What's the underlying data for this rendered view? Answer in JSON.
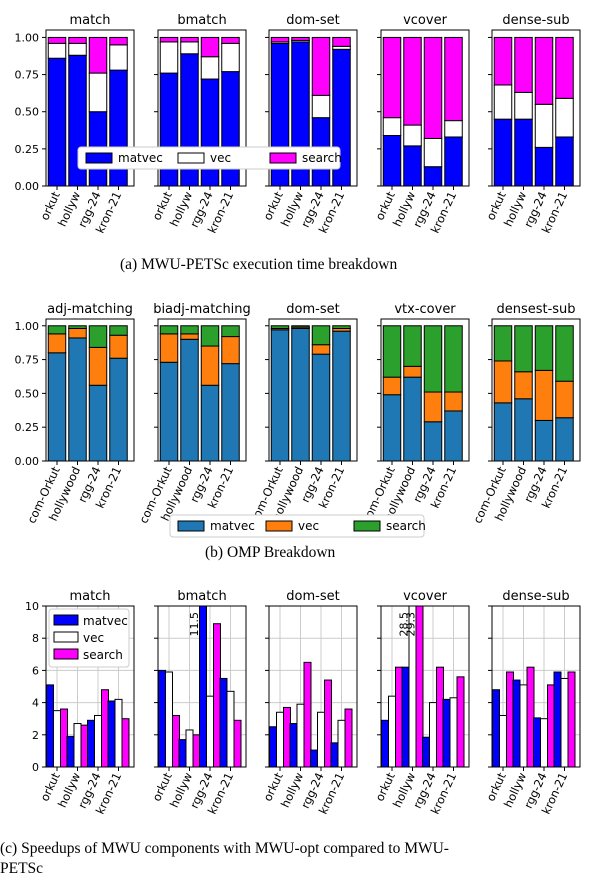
{
  "captions": {
    "a": "(a) MWU-PETSc execution time breakdown",
    "b": "(b) OMP Breakdown",
    "c_line1": "(c) Speedups of MWU components with MWU-opt compared to MWU-",
    "c_line2": "PETSc"
  },
  "chart_data": [
    {
      "type": "bar",
      "stacked": true,
      "normalized": true,
      "subplots": [
        "match",
        "bmatch",
        "dom-set",
        "vcover",
        "dense-sub"
      ],
      "categories": [
        "orkut",
        "hollyw",
        "rgg-24",
        "kron-21"
      ],
      "yticks": [
        "0.00",
        "0.25",
        "0.50",
        "0.75",
        "1.00"
      ],
      "ylim": [
        0,
        1.05
      ],
      "legend": "inside first panel, lower-right",
      "series": [
        {
          "name": "matvec",
          "color": "#0000ff",
          "values": [
            [
              0.86,
              0.88,
              0.5,
              0.78
            ],
            [
              0.76,
              0.89,
              0.72,
              0.77
            ],
            [
              0.96,
              0.97,
              0.46,
              0.92
            ],
            [
              0.34,
              0.27,
              0.13,
              0.33
            ],
            [
              0.45,
              0.45,
              0.26,
              0.33
            ]
          ]
        },
        {
          "name": "vec",
          "color": "#ffffff",
          "values": [
            [
              0.1,
              0.08,
              0.26,
              0.17
            ],
            [
              0.21,
              0.08,
              0.15,
              0.19
            ],
            [
              0.01,
              0.01,
              0.15,
              0.02
            ],
            [
              0.12,
              0.14,
              0.19,
              0.11
            ],
            [
              0.23,
              0.18,
              0.29,
              0.26
            ]
          ]
        },
        {
          "name": "search",
          "color": "#ff00ff",
          "values": [
            [
              0.04,
              0.04,
              0.24,
              0.05
            ],
            [
              0.03,
              0.03,
              0.13,
              0.04
            ],
            [
              0.03,
              0.02,
              0.39,
              0.06
            ],
            [
              0.54,
              0.59,
              0.68,
              0.56
            ],
            [
              0.32,
              0.37,
              0.45,
              0.41
            ]
          ]
        }
      ]
    },
    {
      "type": "bar",
      "stacked": true,
      "normalized": true,
      "subplots": [
        "adj-matching",
        "biadj-matching",
        "dom-set",
        "vtx-cover",
        "densest-sub"
      ],
      "categories": [
        "com-Orkut",
        "hollywood",
        "rgg-24",
        "kron-21"
      ],
      "yticks": [
        "0.00",
        "0.25",
        "0.50",
        "0.75",
        "1.00"
      ],
      "ylim": [
        0,
        1.05
      ],
      "legend": "below panels, center",
      "series": [
        {
          "name": "matvec",
          "color": "#1f77b4",
          "values": [
            [
              0.8,
              0.91,
              0.56,
              0.76
            ],
            [
              0.73,
              0.9,
              0.56,
              0.72
            ],
            [
              0.97,
              0.98,
              0.79,
              0.96
            ],
            [
              0.49,
              0.62,
              0.29,
              0.37
            ],
            [
              0.43,
              0.46,
              0.3,
              0.32
            ]
          ]
        },
        {
          "name": "vec",
          "color": "#ff7f0e",
          "values": [
            [
              0.14,
              0.07,
              0.28,
              0.17
            ],
            [
              0.21,
              0.04,
              0.29,
              0.2
            ],
            [
              0.01,
              0.01,
              0.07,
              0.02
            ],
            [
              0.13,
              0.08,
              0.22,
              0.14
            ],
            [
              0.31,
              0.2,
              0.37,
              0.27
            ]
          ]
        },
        {
          "name": "search",
          "color": "#2ca02c",
          "values": [
            [
              0.06,
              0.02,
              0.16,
              0.07
            ],
            [
              0.06,
              0.06,
              0.15,
              0.08
            ],
            [
              0.02,
              0.01,
              0.14,
              0.02
            ],
            [
              0.38,
              0.3,
              0.49,
              0.49
            ],
            [
              0.26,
              0.34,
              0.33,
              0.41
            ]
          ]
        }
      ]
    },
    {
      "type": "bar",
      "grouped": true,
      "subplots": [
        "match",
        "bmatch",
        "dom-set",
        "vcover",
        "dense-sub"
      ],
      "categories": [
        "orkut",
        "hollyw",
        "rgg-24",
        "kron-21"
      ],
      "yticks": [
        "0",
        "2",
        "4",
        "6",
        "8",
        "10"
      ],
      "ylim": [
        0,
        10
      ],
      "grid": true,
      "legend": "top-left of first panel",
      "annotations": [
        {
          "panel": 1,
          "category": "rgg-24",
          "series": "matvec",
          "text": "11.5"
        },
        {
          "panel": 3,
          "category": "hollyw",
          "series": "vec",
          "text": "28.5"
        },
        {
          "panel": 3,
          "category": "hollyw",
          "series": "search",
          "text": "29.3"
        }
      ],
      "series": [
        {
          "name": "matvec",
          "color": "#0000ff",
          "values": [
            [
              5.1,
              1.9,
              2.9,
              4.1
            ],
            [
              6.0,
              1.7,
              11.5,
              5.5
            ],
            [
              2.5,
              2.7,
              1.05,
              1.5
            ],
            [
              2.9,
              6.2,
              1.85,
              4.2
            ],
            [
              4.8,
              5.4,
              3.05,
              5.9
            ]
          ]
        },
        {
          "name": "vec",
          "color": "#ffffff",
          "values": [
            [
              3.5,
              2.7,
              3.2,
              4.2
            ],
            [
              5.9,
              2.3,
              4.4,
              4.7
            ],
            [
              3.4,
              3.9,
              3.4,
              2.9
            ],
            [
              4.4,
              28.5,
              4.0,
              4.3
            ],
            [
              3.2,
              5.1,
              3.0,
              5.5
            ]
          ]
        },
        {
          "name": "search",
          "color": "#ff00ff",
          "values": [
            [
              3.6,
              2.6,
              4.8,
              3.0
            ],
            [
              3.2,
              2.0,
              8.9,
              2.9
            ],
            [
              3.7,
              6.5,
              5.4,
              3.6
            ],
            [
              6.2,
              29.3,
              6.2,
              5.6
            ],
            [
              5.9,
              6.2,
              5.1,
              5.9
            ]
          ]
        }
      ]
    }
  ]
}
